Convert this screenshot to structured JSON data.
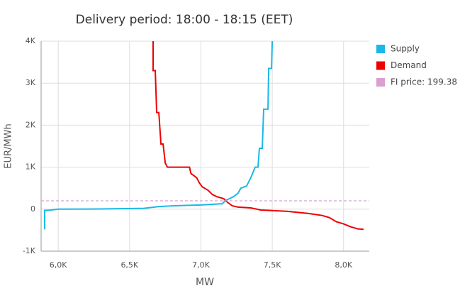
{
  "chart_data": {
    "type": "line",
    "title": "Delivery period: 18:00 - 18:15 (EET)",
    "x_label": "MW",
    "y_label": "EUR/MWh",
    "xlim": [
      5880,
      8180
    ],
    "ylim": [
      -1000,
      4000
    ],
    "xticks": [
      {
        "value": 6000,
        "label": "6,0K"
      },
      {
        "value": 6500,
        "label": "6,5K"
      },
      {
        "value": 7000,
        "label": "7,0K"
      },
      {
        "value": 7500,
        "label": "7,5K"
      },
      {
        "value": 8000,
        "label": "8,0K"
      }
    ],
    "yticks": [
      {
        "value": -1000,
        "label": "-1K"
      },
      0,
      {
        "value": 1000,
        "label": "1K"
      },
      {
        "value": 2000,
        "label": "2K"
      },
      {
        "value": 3000,
        "label": "3K"
      },
      {
        "value": 4000,
        "label": "4K"
      }
    ],
    "grid": true,
    "series": [
      {
        "name": "Supply",
        "color": "#1ab8e8",
        "x": [
          5905,
          5905,
          5950,
          6000,
          6300,
          6600,
          6700,
          6800,
          7000,
          7150,
          7170,
          7200,
          7230,
          7260,
          7280,
          7320,
          7350,
          7380,
          7400,
          7410,
          7430,
          7440,
          7470,
          7475,
          7495,
          7500
        ],
        "values": [
          -480,
          -30,
          -20,
          0,
          5,
          20,
          60,
          80,
          100,
          130,
          200,
          250,
          300,
          380,
          500,
          550,
          750,
          1000,
          1000,
          1450,
          1450,
          2380,
          2380,
          3350,
          3350,
          4000
        ]
      },
      {
        "name": "Demand",
        "color": "#ee0000",
        "x": [
          6665,
          6665,
          6680,
          6690,
          6705,
          6720,
          6735,
          6750,
          6765,
          6920,
          6930,
          6970,
          6990,
          7010,
          7050,
          7080,
          7110,
          7160,
          7180,
          7220,
          7260,
          7350,
          7420,
          7600,
          7750,
          7850,
          7900,
          7950,
          8000,
          8050,
          8100,
          8140
        ],
        "values": [
          4000,
          3300,
          3300,
          2300,
          2300,
          1550,
          1550,
          1100,
          1000,
          1000,
          850,
          750,
          620,
          530,
          450,
          350,
          300,
          250,
          180,
          80,
          50,
          30,
          -20,
          -50,
          -100,
          -150,
          -200,
          -300,
          -350,
          -420,
          -470,
          -480
        ]
      },
      {
        "name": "FI price: 199.38",
        "color": "#d8a0d0",
        "value": 199.38,
        "dashed": true
      }
    ]
  }
}
